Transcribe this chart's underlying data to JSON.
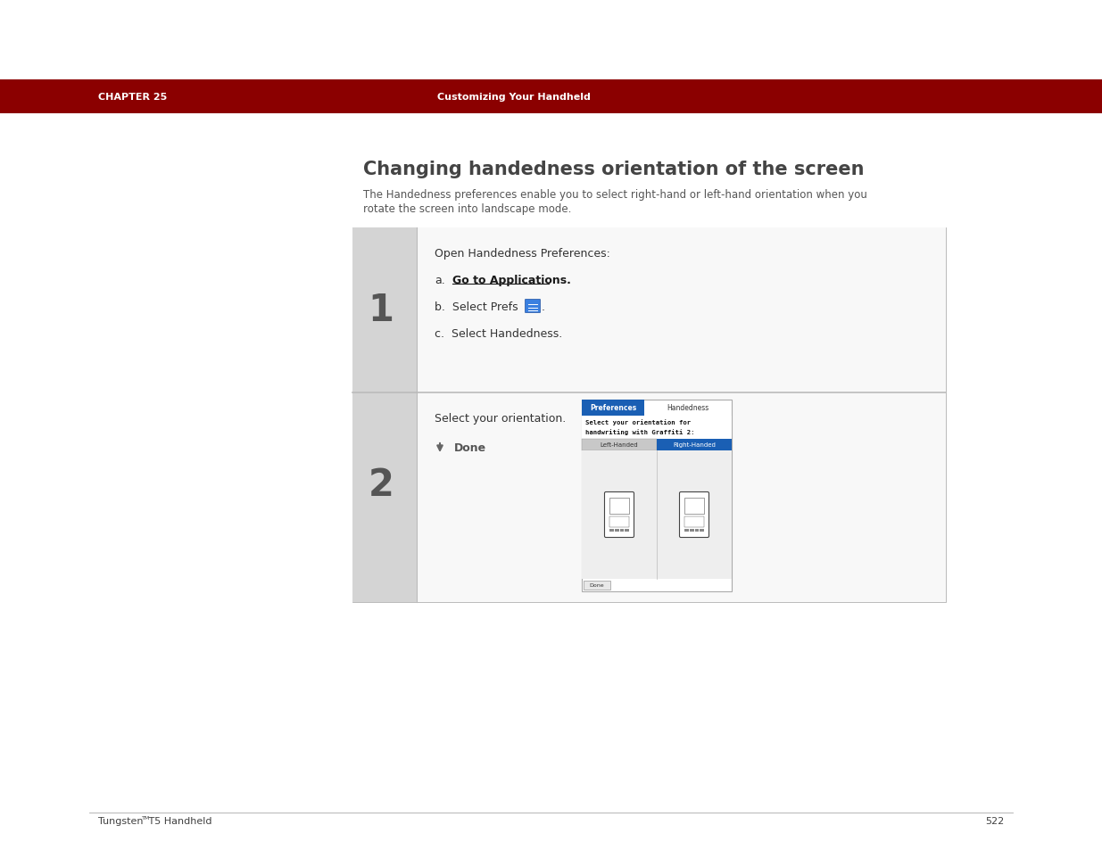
{
  "bg_color": "#ffffff",
  "header_color": "#8B0000",
  "header_text_left": "CHAPTER 25",
  "header_text_center": "Customizing Your Handheld",
  "header_text_color": "#ffffff",
  "page_title": "Changing handedness orientation of the screen",
  "page_title_color": "#444444",
  "subtitle_line1": "The Handedness preferences enable you to select right-hand or left-hand orientation when you",
  "subtitle_line2": "rotate the screen into landscape mode.",
  "subtitle_color": "#555555",
  "step1_number": "1",
  "step1_title": "Open Handedness Preferences:",
  "step1_a": "Go to Applications",
  "step1_b": "b.  Select Prefs",
  "step1_c": "c.  Select Handedness.",
  "step2_number": "2",
  "step2_line1": "Select your orientation.",
  "step2_done": "Done",
  "footer_left": "Tungsten",
  "footer_tm": "TM",
  "footer_right_part": " T5 Handheld",
  "footer_page": "522",
  "footer_color": "#404040",
  "step_num_color": "#555555",
  "outer_bg": "#d4d4d4",
  "step_content_bg": "#f8f8f8",
  "divider_color": "#bbbbbb",
  "prefs_blue": "#1a5fb4",
  "right_handed_blue": "#1a5fb4",
  "tab_grey": "#c8c8c8"
}
